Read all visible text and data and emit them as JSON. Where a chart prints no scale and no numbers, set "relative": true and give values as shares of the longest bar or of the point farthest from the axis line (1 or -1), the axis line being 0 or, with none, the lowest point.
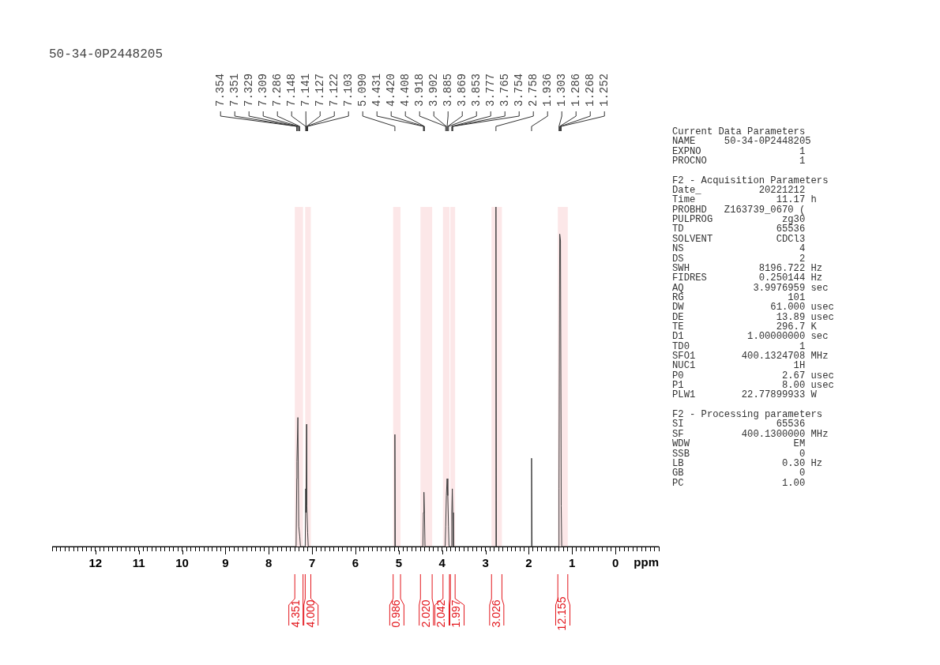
{
  "chart_data": [
    {
      "type": "line",
      "title": "50-34-0P2448205",
      "xlabel": "ppm",
      "relative": true,
      "color": "#404040",
      "marker": "none",
      "x": [
        13,
        7.37,
        7.354,
        7.351,
        7.329,
        7.309,
        7.286,
        7.27,
        7.16,
        7.148,
        7.141,
        7.127,
        7.122,
        7.103,
        7.09,
        5.1,
        5.09,
        5.08,
        4.445,
        4.431,
        4.42,
        4.408,
        4.395,
        3.93,
        3.918,
        3.902,
        3.885,
        3.869,
        3.853,
        3.84,
        3.79,
        3.777,
        3.765,
        3.754,
        3.74,
        2.77,
        2.758,
        2.746,
        1.948,
        1.936,
        1.924,
        1.315,
        1.303,
        1.286,
        1.268,
        1.252,
        1.24,
        -1
      ],
      "values": [
        0,
        0,
        0.2,
        0.25,
        0.38,
        0.06,
        0.03,
        0,
        0,
        0.17,
        0.1,
        0.36,
        0.12,
        0.04,
        0,
        0,
        0.33,
        0,
        0,
        0.1,
        0.16,
        0.1,
        0,
        0,
        0.06,
        0.15,
        0.2,
        0.15,
        0.06,
        0,
        0,
        0.1,
        0.17,
        0.1,
        0,
        0,
        1,
        0,
        0,
        0.26,
        0,
        0,
        0.17,
        0.92,
        0.9,
        0.12,
        0,
        0
      ],
      "xlim": [
        13,
        -1
      ],
      "xticks": [
        {
          "value": 13,
          "label": null
        },
        {
          "value": 12.9,
          "label": null
        },
        {
          "value": 12.8,
          "label": null
        },
        {
          "value": 12.7,
          "label": null
        },
        {
          "value": 12.6,
          "label": null
        },
        {
          "value": 12.5,
          "label": null
        },
        {
          "value": 12.4,
          "label": null
        },
        {
          "value": 12.3,
          "label": null
        },
        {
          "value": 12.2,
          "label": null
        },
        {
          "value": 12.1,
          "label": null
        },
        12,
        {
          "value": 11.9,
          "label": null
        },
        {
          "value": 11.8,
          "label": null
        },
        {
          "value": 11.7,
          "label": null
        },
        {
          "value": 11.6,
          "label": null
        },
        {
          "value": 11.5,
          "label": null
        },
        {
          "value": 11.4,
          "label": null
        },
        {
          "value": 11.3,
          "label": null
        },
        {
          "value": 11.2,
          "label": null
        },
        {
          "value": 11.1,
          "label": null
        },
        11,
        {
          "value": 10.9,
          "label": null
        },
        {
          "value": 10.8,
          "label": null
        },
        {
          "value": 10.7,
          "label": null
        },
        {
          "value": 10.6,
          "label": null
        },
        {
          "value": 10.5,
          "label": null
        },
        {
          "value": 10.4,
          "label": null
        },
        {
          "value": 10.3,
          "label": null
        },
        {
          "value": 10.2,
          "label": null
        },
        {
          "value": 10.1,
          "label": null
        },
        10,
        {
          "value": 9.9,
          "label": null
        },
        {
          "value": 9.8,
          "label": null
        },
        {
          "value": 9.7,
          "label": null
        },
        {
          "value": 9.6,
          "label": null
        },
        {
          "value": 9.5,
          "label": null
        },
        {
          "value": 9.4,
          "label": null
        },
        {
          "value": 9.3,
          "label": null
        },
        {
          "value": 9.2,
          "label": null
        },
        {
          "value": 9.1,
          "label": null
        },
        9,
        {
          "value": 8.9,
          "label": null
        },
        {
          "value": 8.8,
          "label": null
        },
        {
          "value": 8.7,
          "label": null
        },
        {
          "value": 8.6,
          "label": null
        },
        {
          "value": 8.5,
          "label": null
        },
        {
          "value": 8.4,
          "label": null
        },
        {
          "value": 8.3,
          "label": null
        },
        {
          "value": 8.2,
          "label": null
        },
        {
          "value": 8.1,
          "label": null
        },
        8,
        {
          "value": 7.9,
          "label": null
        },
        {
          "value": 7.8,
          "label": null
        },
        {
          "value": 7.7,
          "label": null
        },
        {
          "value": 7.6,
          "label": null
        },
        {
          "value": 7.5,
          "label": null
        },
        {
          "value": 7.4,
          "label": null
        },
        {
          "value": 7.3,
          "label": null
        },
        {
          "value": 7.2,
          "label": null
        },
        {
          "value": 7.1,
          "label": null
        },
        7,
        {
          "value": 6.9,
          "label": null
        },
        {
          "value": 6.8,
          "label": null
        },
        {
          "value": 6.7,
          "label": null
        },
        {
          "value": 6.6,
          "label": null
        },
        {
          "value": 6.5,
          "label": null
        },
        {
          "value": 6.4,
          "label": null
        },
        {
          "value": 6.3,
          "label": null
        },
        {
          "value": 6.2,
          "label": null
        },
        {
          "value": 6.1,
          "label": null
        },
        6,
        {
          "value": 5.9,
          "label": null
        },
        {
          "value": 5.8,
          "label": null
        },
        {
          "value": 5.7,
          "label": null
        },
        {
          "value": 5.6,
          "label": null
        },
        {
          "value": 5.5,
          "label": null
        },
        {
          "value": 5.4,
          "label": null
        },
        {
          "value": 5.3,
          "label": null
        },
        {
          "value": 5.2,
          "label": null
        },
        {
          "value": 5.1,
          "label": null
        },
        5,
        {
          "value": 4.9,
          "label": null
        },
        {
          "value": 4.8,
          "label": null
        },
        {
          "value": 4.7,
          "label": null
        },
        {
          "value": 4.6,
          "label": null
        },
        {
          "value": 4.5,
          "label": null
        },
        {
          "value": 4.4,
          "label": null
        },
        {
          "value": 4.3,
          "label": null
        },
        {
          "value": 4.2,
          "label": null
        },
        {
          "value": 4.1,
          "label": null
        },
        4,
        {
          "value": 3.9,
          "label": null
        },
        {
          "value": 3.8,
          "label": null
        },
        {
          "value": 3.7,
          "label": null
        },
        {
          "value": 3.6,
          "label": null
        },
        {
          "value": 3.5,
          "label": null
        },
        {
          "value": 3.4,
          "label": null
        },
        {
          "value": 3.3,
          "label": null
        },
        {
          "value": 3.2,
          "label": null
        },
        {
          "value": 3.1,
          "label": null
        },
        3,
        {
          "value": 2.9,
          "label": null
        },
        {
          "value": 2.8,
          "label": null
        },
        {
          "value": 2.7,
          "label": null
        },
        {
          "value": 2.6,
          "label": null
        },
        {
          "value": 2.5,
          "label": null
        },
        {
          "value": 2.4,
          "label": null
        },
        {
          "value": 2.3,
          "label": null
        },
        {
          "value": 2.2,
          "label": null
        },
        {
          "value": 2.1,
          "label": null
        },
        2,
        {
          "value": 1.9,
          "label": null
        },
        {
          "value": 1.8,
          "label": null
        },
        {
          "value": 1.7,
          "label": null
        },
        {
          "value": 1.6,
          "label": null
        },
        {
          "value": 1.5,
          "label": null
        },
        {
          "value": 1.4,
          "label": null
        },
        {
          "value": 1.3,
          "label": null
        },
        {
          "value": 1.2,
          "label": null
        },
        {
          "value": 1.1,
          "label": null
        },
        1,
        {
          "value": 0.9,
          "label": null
        },
        {
          "value": 0.8,
          "label": null
        },
        {
          "value": 0.7,
          "label": null
        },
        {
          "value": 0.6,
          "label": null
        },
        {
          "value": 0.5,
          "label": null
        },
        {
          "value": 0.4,
          "label": null
        },
        {
          "value": 0.3,
          "label": null
        },
        {
          "value": 0.2,
          "label": null
        },
        {
          "value": 0.1,
          "label": null
        },
        0,
        {
          "value": -0.1,
          "label": null
        },
        {
          "value": -0.2,
          "label": null
        },
        {
          "value": -0.3,
          "label": null
        },
        {
          "value": -0.4,
          "label": null
        },
        {
          "value": -0.5,
          "label": null
        },
        {
          "value": -0.6,
          "label": null
        },
        {
          "value": -0.7,
          "label": null
        },
        {
          "value": -0.8,
          "label": null
        },
        {
          "value": -0.9,
          "label": null
        },
        {
          "value": -1,
          "label": null
        }
      ],
      "annotations": [
        {
          "text": "7.354",
          "x": 7.354
        },
        {
          "text": "7.351",
          "x": 7.351
        },
        {
          "text": "7.329",
          "x": 7.329
        },
        {
          "text": "7.309",
          "x": 7.309
        },
        {
          "text": "7.286",
          "x": 7.286
        },
        {
          "text": "7.148",
          "x": 7.148
        },
        {
          "text": "7.141",
          "x": 7.141
        },
        {
          "text": "7.127",
          "x": 7.127
        },
        {
          "text": "7.122",
          "x": 7.122
        },
        {
          "text": "7.103",
          "x": 7.103
        },
        {
          "text": "5.090",
          "x": 5.09
        },
        {
          "text": "4.431",
          "x": 4.431
        },
        {
          "text": "4.420",
          "x": 4.42
        },
        {
          "text": "4.408",
          "x": 4.408
        },
        {
          "text": "3.918",
          "x": 3.918
        },
        {
          "text": "3.902",
          "x": 3.902
        },
        {
          "text": "3.885",
          "x": 3.885
        },
        {
          "text": "3.869",
          "x": 3.869
        },
        {
          "text": "3.853",
          "x": 3.853
        },
        {
          "text": "3.777",
          "x": 3.777
        },
        {
          "text": "3.765",
          "x": 3.765
        },
        {
          "text": "3.754",
          "x": 3.754
        },
        {
          "text": "2.758",
          "x": 2.758
        },
        {
          "text": "1.936",
          "x": 1.936
        },
        {
          "text": "1.303",
          "x": 1.303
        },
        {
          "text": "1.286",
          "x": 1.286
        },
        {
          "text": "1.268",
          "x": 1.268
        },
        {
          "text": "1.252",
          "x": 1.252
        }
      ],
      "bands": [
        {
          "axis": "x",
          "from": 7.4,
          "to": 7.21,
          "label": "4.351",
          "color": "#e3171d"
        },
        {
          "axis": "x",
          "from": 7.16,
          "to": 7.03,
          "label": "4.000",
          "color": "#e3171d"
        },
        {
          "axis": "x",
          "from": 5.13,
          "to": 4.96,
          "label": "0.986",
          "color": "#e3171d"
        },
        {
          "axis": "x",
          "from": 4.5,
          "to": 4.23,
          "label": "2.020",
          "color": "#e3171d"
        },
        {
          "axis": "x",
          "from": 3.98,
          "to": 3.83,
          "label": "2.042",
          "color": "#e3171d"
        },
        {
          "axis": "x",
          "from": 3.81,
          "to": 3.7,
          "label": "1.997",
          "color": "#e3171d"
        },
        {
          "axis": "x",
          "from": 2.86,
          "to": 2.62,
          "label": "3.026",
          "color": "#e3171d"
        },
        {
          "axis": "x",
          "from": 1.33,
          "to": 1.1,
          "label": "12.155",
          "color": "#e3171d"
        }
      ]
    },
    {
      "type": "other",
      "title": "Current Data Parameters",
      "annotations": [
        "NAME     50-34-0P2448205",
        "EXPNO                 1",
        "PROCNO                1"
      ]
    },
    {
      "type": "other",
      "title": "F2 - Acquisition Parameters",
      "annotations": [
        "Date_          20221212",
        "Time              11.17 h",
        "PROBHD   Z163739_0670 (",
        "PULPROG            zg30",
        "TD                65536",
        "SOLVENT           CDCl3",
        "NS                    4",
        "DS                    2",
        "SWH            8196.722 Hz",
        "FIDRES         0.250144 Hz",
        "AQ            3.9976959 sec",
        "RG                  101",
        "DW               61.000 usec",
        "DE                13.89 usec",
        "TE                296.7 K",
        "D1           1.00000000 sec",
        "TD0                   1",
        "SFO1        400.1324708 MHz",
        "NUC1                 1H",
        "P0                 2.67 usec",
        "P1                 8.00 usec",
        "PLW1        22.77899933 W"
      ]
    },
    {
      "type": "other",
      "title": "F2 - Processing parameters",
      "annotations": [
        "SI                65536",
        "SF          400.1300000 MHz",
        "WDW                  EM",
        "SSB                   0",
        "LB                 0.30 Hz",
        "GB                    0",
        "PC                 1.00"
      ]
    }
  ]
}
